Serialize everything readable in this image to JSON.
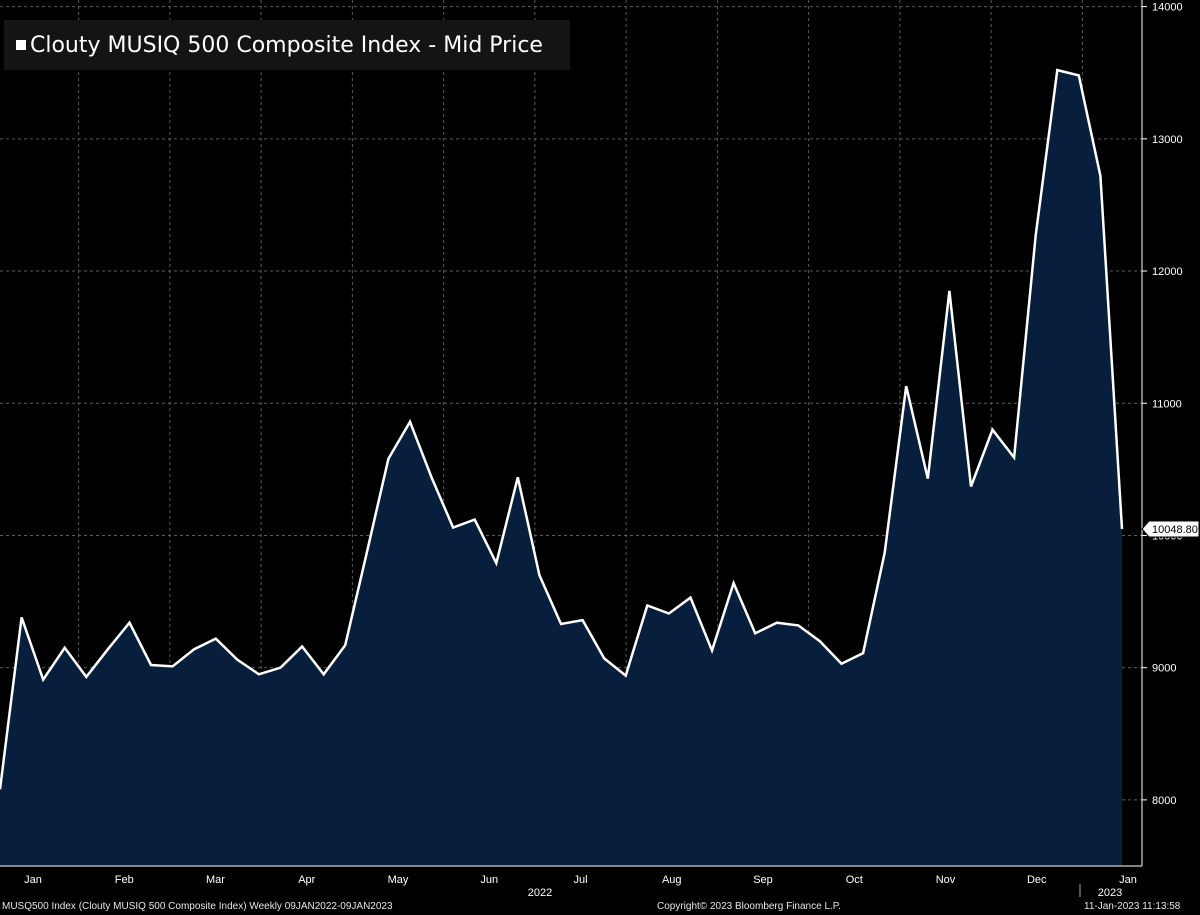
{
  "chart_data": {
    "type": "area",
    "title": "Clouty MUSIQ 500 Composite Index - Mid Price",
    "series": [
      {
        "name": "Clouty MUSIQ 500 Composite Index - Mid Price",
        "values": [
          8080,
          9380,
          8910,
          9150,
          8930,
          9140,
          9340,
          9020,
          9010,
          9140,
          9220,
          9060,
          8950,
          9000,
          9160,
          8950,
          9170,
          9870,
          10580,
          10860,
          10440,
          10060,
          10120,
          9790,
          10440,
          9700,
          9330,
          9360,
          9070,
          8940,
          9470,
          9410,
          9530,
          9130,
          9640,
          9260,
          9340,
          9320,
          9200,
          9030,
          9110,
          9870,
          11130,
          10430,
          11850,
          10370,
          10800,
          10590,
          12270,
          13520,
          13480,
          12720,
          10048.8
        ],
        "color": "#ffffff",
        "fill": "#071f3d"
      }
    ],
    "ylim": [
      7500,
      14050
    ],
    "yticks": [
      8000,
      9000,
      10000,
      11000,
      12000,
      13000,
      14000
    ],
    "ytick_labels": [
      "8000",
      "9000",
      "10000",
      "11000",
      "12000",
      "13000",
      "14000"
    ],
    "last_value_label": "10048.80",
    "x_month_labels": [
      "Jan",
      "Feb",
      "Mar",
      "Apr",
      "May",
      "Jun",
      "Jul",
      "Aug",
      "Sep",
      "Oct",
      "Nov",
      "Dec",
      "Jan"
    ],
    "x_year_labels": [
      "2022",
      "2023"
    ],
    "grid": true,
    "background": "#000000",
    "legend_position": "top-left"
  },
  "footer": {
    "left": "MUSQ500 Index (Clouty MUSIQ 500 Composite Index)  Weekly 09JAN2022-09JAN2023",
    "center": "Copyright© 2023 Bloomberg Finance L.P.",
    "right": "11-Jan-2023 11:13:58"
  }
}
